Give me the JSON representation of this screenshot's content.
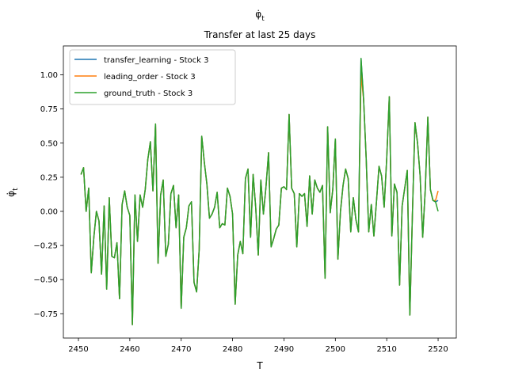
{
  "chart_data": {
    "type": "line",
    "title_symbol": "φ̇",
    "title_subscript": "t",
    "subtitle": "Transfer at last 25 days",
    "x_label": "T",
    "y_label_symbol": "φ̇",
    "y_label_subscript": "t",
    "xlim": [
      2447.07,
      2523.54
    ],
    "xticks": [
      2450,
      2460,
      2470,
      2480,
      2490,
      2500,
      2510,
      2520
    ],
    "ylim": [
      -0.928,
      1.212
    ],
    "yticks": [
      {
        "value": -0.75,
        "label": "−0.75"
      },
      {
        "value": -0.5,
        "label": "−0.50"
      },
      {
        "value": -0.25,
        "label": "−0.25"
      },
      {
        "value": 0,
        "label": "0.00"
      },
      {
        "value": 0.25,
        "label": "0.25"
      },
      {
        "value": 0.5,
        "label": "0.50"
      },
      {
        "value": 0.75,
        "label": "0.75"
      },
      {
        "value": 1,
        "label": "1.00"
      }
    ],
    "grid": false,
    "legend": "upper left",
    "x": [
      2450.5,
      2451,
      2451.5,
      2452,
      2452.5,
      2453,
      2453.5,
      2454,
      2454.5,
      2455,
      2455.5,
      2456,
      2456.5,
      2457,
      2457.5,
      2458,
      2458.5,
      2459,
      2459.5,
      2460,
      2460.5,
      2461,
      2461.5,
      2462,
      2462.5,
      2463,
      2463.5,
      2464,
      2464.5,
      2465,
      2465.5,
      2466,
      2466.5,
      2467,
      2467.5,
      2468,
      2468.5,
      2469,
      2469.5,
      2470,
      2470.5,
      2471,
      2471.5,
      2472,
      2472.5,
      2473,
      2473.5,
      2474,
      2474.5,
      2475,
      2475.5,
      2476,
      2476.5,
      2477,
      2477.5,
      2478,
      2478.5,
      2479,
      2479.5,
      2480,
      2480.5,
      2481,
      2481.5,
      2482,
      2482.5,
      2483,
      2483.5,
      2484,
      2484.5,
      2485,
      2485.5,
      2486,
      2486.5,
      2487,
      2487.5,
      2488,
      2488.5,
      2489,
      2489.5,
      2490,
      2490.5,
      2491,
      2491.5,
      2492,
      2492.5,
      2493,
      2493.5,
      2494,
      2494.5,
      2495,
      2495.5,
      2496,
      2496.5,
      2497,
      2497.5,
      2498,
      2498.5,
      2499,
      2499.5,
      2500,
      2500.5,
      2501,
      2501.5,
      2502,
      2502.5,
      2503,
      2503.5,
      2504,
      2504.5,
      2505,
      2505.5,
      2506,
      2506.5,
      2507,
      2507.5,
      2508,
      2508.5,
      2509,
      2509.5,
      2510,
      2510.5,
      2511,
      2511.5,
      2512,
      2512.5,
      2513,
      2513.5,
      2514,
      2514.5,
      2515,
      2515.5,
      2516,
      2516.5,
      2517,
      2517.5,
      2518,
      2518.5,
      2519,
      2519.5,
      2520
    ],
    "series": [
      {
        "name": "transfer_learning - Stock 3",
        "color": "#1f77b4",
        "values": [
          0.27,
          0.32,
          0.0,
          0.17,
          -0.45,
          -0.19,
          0.0,
          -0.07,
          -0.46,
          0.04,
          -0.57,
          0.1,
          -0.33,
          -0.34,
          -0.23,
          -0.64,
          0.05,
          0.15,
          0.03,
          -0.03,
          -0.83,
          0.12,
          -0.22,
          0.12,
          0.03,
          0.16,
          0.38,
          0.51,
          0.15,
          0.64,
          -0.38,
          0.12,
          0.23,
          -0.33,
          -0.24,
          0.13,
          0.19,
          -0.12,
          0.12,
          -0.71,
          -0.19,
          -0.12,
          0.04,
          0.07,
          -0.52,
          -0.59,
          -0.28,
          0.55,
          0.36,
          0.2,
          -0.05,
          -0.02,
          0.03,
          0.14,
          -0.12,
          -0.09,
          -0.1,
          0.17,
          0.11,
          -0.02,
          -0.68,
          -0.32,
          -0.22,
          -0.31,
          0.24,
          0.31,
          -0.19,
          0.27,
          0.03,
          -0.32,
          0.23,
          -0.02,
          0.18,
          0.43,
          -0.26,
          -0.2,
          -0.13,
          -0.1,
          0.17,
          0.18,
          0.16,
          0.71,
          0.17,
          0.13,
          -0.26,
          0.13,
          0.11,
          0.13,
          -0.11,
          0.26,
          -0.02,
          0.23,
          0.17,
          0.14,
          0.19,
          -0.49,
          0.62,
          -0.01,
          0.16,
          0.53,
          -0.35,
          0.0,
          0.19,
          0.31,
          0.24,
          -0.15,
          0.1,
          -0.06,
          -0.15,
          1.12,
          0.82,
          0.39,
          -0.15,
          0.05,
          -0.18,
          0.07,
          0.33,
          0.26,
          0.03,
          0.39,
          0.84,
          -0.18,
          0.2,
          0.14,
          -0.54,
          0.04,
          0.17,
          0.3,
          -0.76,
          -0.02,
          0.65,
          0.5,
          0.26,
          -0.19,
          0.16,
          0.69,
          0.16,
          0.08,
          0.07,
          0.08
        ]
      },
      {
        "name": "leading_order - Stock 3",
        "color": "#ff7f0e",
        "values": [
          0.27,
          0.32,
          0.0,
          0.17,
          -0.45,
          -0.19,
          0.0,
          -0.07,
          -0.46,
          0.04,
          -0.57,
          0.1,
          -0.33,
          -0.34,
          -0.23,
          -0.64,
          0.05,
          0.15,
          0.03,
          -0.03,
          -0.83,
          0.12,
          -0.22,
          0.12,
          0.03,
          0.16,
          0.38,
          0.51,
          0.15,
          0.64,
          -0.38,
          0.12,
          0.23,
          -0.33,
          -0.24,
          0.13,
          0.19,
          -0.12,
          0.12,
          -0.71,
          -0.19,
          -0.12,
          0.04,
          0.07,
          -0.52,
          -0.59,
          -0.28,
          0.55,
          0.36,
          0.2,
          -0.05,
          -0.02,
          0.03,
          0.14,
          -0.12,
          -0.09,
          -0.1,
          0.17,
          0.11,
          -0.02,
          -0.68,
          -0.32,
          -0.22,
          -0.31,
          0.24,
          0.31,
          -0.19,
          0.27,
          0.03,
          -0.32,
          0.23,
          -0.02,
          0.18,
          0.43,
          -0.26,
          -0.2,
          -0.13,
          -0.1,
          0.17,
          0.18,
          0.16,
          0.71,
          0.17,
          0.13,
          -0.26,
          0.13,
          0.11,
          0.13,
          -0.11,
          0.26,
          -0.02,
          0.23,
          0.17,
          0.14,
          0.19,
          -0.49,
          0.62,
          -0.01,
          0.16,
          0.53,
          -0.35,
          0.0,
          0.19,
          0.31,
          0.24,
          -0.15,
          0.1,
          -0.06,
          -0.15,
          1.0,
          0.82,
          0.39,
          -0.15,
          0.05,
          -0.18,
          0.07,
          0.33,
          0.26,
          0.03,
          0.39,
          0.84,
          -0.18,
          0.2,
          0.14,
          -0.54,
          0.04,
          0.17,
          0.3,
          -0.76,
          -0.02,
          0.65,
          0.5,
          0.26,
          -0.19,
          0.16,
          0.69,
          0.16,
          0.08,
          0.08,
          0.15
        ]
      },
      {
        "name": "ground_truth - Stock 3",
        "color": "#2ca02c",
        "values": [
          0.27,
          0.32,
          0.0,
          0.17,
          -0.45,
          -0.19,
          0.0,
          -0.07,
          -0.46,
          0.04,
          -0.57,
          0.1,
          -0.33,
          -0.34,
          -0.23,
          -0.64,
          0.05,
          0.15,
          0.03,
          -0.03,
          -0.83,
          0.12,
          -0.22,
          0.12,
          0.03,
          0.16,
          0.38,
          0.51,
          0.15,
          0.64,
          -0.38,
          0.12,
          0.23,
          -0.33,
          -0.24,
          0.13,
          0.19,
          -0.12,
          0.12,
          -0.71,
          -0.19,
          -0.12,
          0.04,
          0.07,
          -0.52,
          -0.59,
          -0.28,
          0.55,
          0.36,
          0.2,
          -0.05,
          -0.02,
          0.03,
          0.14,
          -0.12,
          -0.09,
          -0.1,
          0.17,
          0.11,
          -0.02,
          -0.68,
          -0.32,
          -0.22,
          -0.31,
          0.24,
          0.31,
          -0.19,
          0.27,
          0.03,
          -0.32,
          0.23,
          -0.02,
          0.18,
          0.43,
          -0.26,
          -0.2,
          -0.13,
          -0.1,
          0.17,
          0.18,
          0.16,
          0.71,
          0.17,
          0.13,
          -0.26,
          0.13,
          0.11,
          0.13,
          -0.11,
          0.26,
          -0.02,
          0.23,
          0.17,
          0.14,
          0.19,
          -0.49,
          0.62,
          -0.01,
          0.16,
          0.53,
          -0.35,
          0.0,
          0.19,
          0.31,
          0.24,
          -0.15,
          0.1,
          -0.06,
          -0.15,
          1.12,
          0.82,
          0.39,
          -0.15,
          0.05,
          -0.18,
          0.07,
          0.33,
          0.26,
          0.03,
          0.39,
          0.84,
          -0.18,
          0.2,
          0.14,
          -0.54,
          0.04,
          0.17,
          0.3,
          -0.76,
          -0.02,
          0.65,
          0.5,
          0.26,
          -0.19,
          0.16,
          0.69,
          0.16,
          0.08,
          0.07,
          0.0
        ]
      }
    ]
  }
}
